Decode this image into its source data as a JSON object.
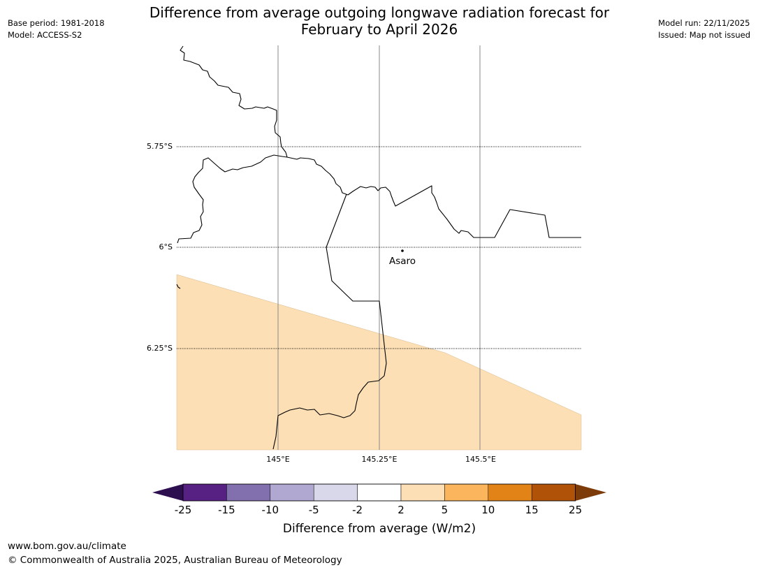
{
  "header": {
    "title_line1": "Difference from average outgoing longwave radiation forecast for",
    "title_line2": "February to April 2026",
    "base_period": "Base period: 1981-2018",
    "model": "Model: ACCESS-S2",
    "model_run": "Model run: 22/11/2025",
    "issued": "Issued: Map not issued"
  },
  "map": {
    "lat_labels": [
      "5.75°S",
      "6°S",
      "6.25°S"
    ],
    "lon_labels": [
      "145°E",
      "145.25°E",
      "145.5°E"
    ],
    "place_name": "Asaro",
    "anomaly_category": "2 to 5"
  },
  "legend": {
    "title": "Difference from average (W/m2)",
    "ticks": [
      "-25",
      "-15",
      "-10",
      "-5",
      "-2",
      "2",
      "5",
      "10",
      "15",
      "25"
    ],
    "colors": [
      "#562182",
      "#8170ad",
      "#b0a8d1",
      "#d9d8ea",
      "#ffffff",
      "#fcdfb5",
      "#fab55d",
      "#e18317",
      "#b05207"
    ],
    "under_color": "#2d0e4f",
    "over_color": "#7e3b0a"
  },
  "footer": {
    "url": "www.bom.gov.au/climate",
    "copyright": "© Commonwealth of Australia 2025, Australian Bureau of Meteorology"
  }
}
